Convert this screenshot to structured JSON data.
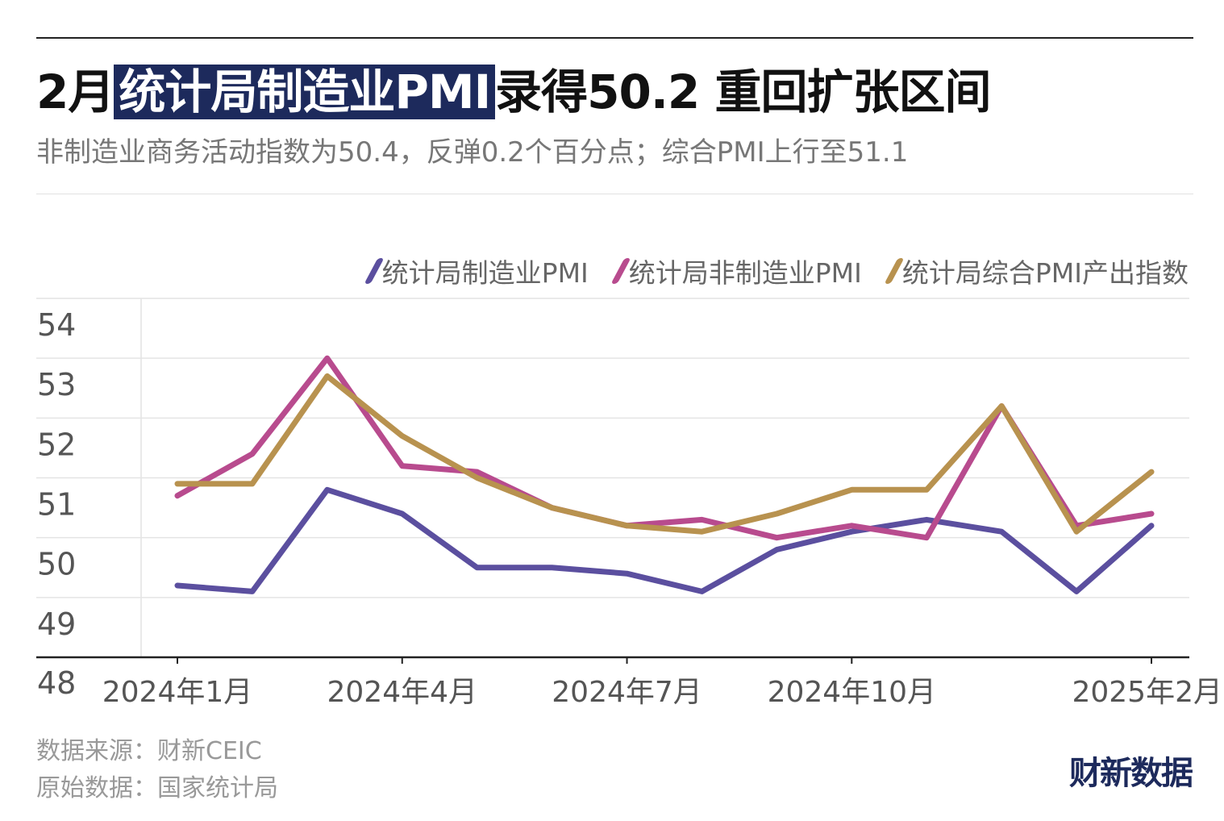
{
  "header": {
    "title_prefix": "2月",
    "title_highlight": "统计局制造业PMI",
    "title_suffix": "录得50.2 重回扩张区间",
    "subtitle": "非制造业商务活动指数为50.4，反弹0.2个百分点；综合PMI上行至51.1"
  },
  "footer": {
    "source_1": "数据来源：财新CEIC",
    "source_2": "原始数据：国家统计局",
    "brand": "财新数据"
  },
  "colors": {
    "manufacturing": "#5b4f9f",
    "non_manufacturing": "#b84b8e",
    "composite": "#b8924f",
    "highlight": "#1d2a5c"
  },
  "chart_data": {
    "type": "line",
    "title": "2月统计局制造业PMI录得50.2 重回扩张区间",
    "xlabel": "",
    "ylabel": "",
    "ylim": [
      48,
      54
    ],
    "yticks": [
      "54",
      "53",
      "52",
      "51",
      "50",
      "49",
      "48"
    ],
    "x": [
      "2024年1月",
      "2024年2月",
      "2024年3月",
      "2024年4月",
      "2024年5月",
      "2024年6月",
      "2024年7月",
      "2024年8月",
      "2024年9月",
      "2024年10月",
      "2024年11月",
      "2024年12月",
      "2025年1月",
      "2025年2月"
    ],
    "xtick_labels": [
      "2024年1月",
      "2024年4月",
      "2024年7月",
      "2024年10月",
      "2025年2月"
    ],
    "legend_position": "top-right",
    "grid": true,
    "series": [
      {
        "name": "统计局制造业PMI",
        "color_key": "manufacturing",
        "values": [
          49.2,
          49.1,
          50.8,
          50.4,
          49.5,
          49.5,
          49.4,
          49.1,
          49.8,
          50.1,
          50.3,
          50.1,
          49.1,
          50.2
        ]
      },
      {
        "name": "统计局非制造业PMI",
        "color_key": "non_manufacturing",
        "values": [
          50.7,
          51.4,
          53.0,
          51.2,
          51.1,
          50.5,
          50.2,
          50.3,
          50.0,
          50.2,
          50.0,
          52.2,
          50.2,
          50.4
        ]
      },
      {
        "name": "统计局综合PMI产出指数",
        "color_key": "composite",
        "values": [
          50.9,
          50.9,
          52.7,
          51.7,
          51.0,
          50.5,
          50.2,
          50.1,
          50.4,
          50.8,
          50.8,
          52.2,
          50.1,
          51.1
        ]
      }
    ]
  }
}
